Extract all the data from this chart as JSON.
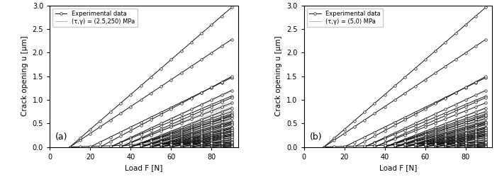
{
  "title_a": "(a)",
  "title_b": "(b)",
  "xlabel": "Load F [N]",
  "ylabel": "Crack opening u [μm]",
  "xlim": [
    0,
    93
  ],
  "ylim": [
    0,
    3
  ],
  "xticks": [
    0,
    20,
    40,
    60,
    80
  ],
  "yticks": [
    0,
    0.5,
    1.0,
    1.5,
    2.0,
    2.5,
    3.0
  ],
  "legend_exp": "Experimental data",
  "legend_a": "(τ,γ) = (2.5,250) MPa",
  "legend_b": "(τ,γ) = (5,0) MPa",
  "exp_color": "#111111",
  "sim_color": "#aaaaaa",
  "exp_linewidth": 0.7,
  "sim_linewidth": 0.6,
  "exp_marker": "o",
  "exp_markersize": 2.5,
  "figsize": [
    7.01,
    2.5
  ],
  "dpi": 100
}
